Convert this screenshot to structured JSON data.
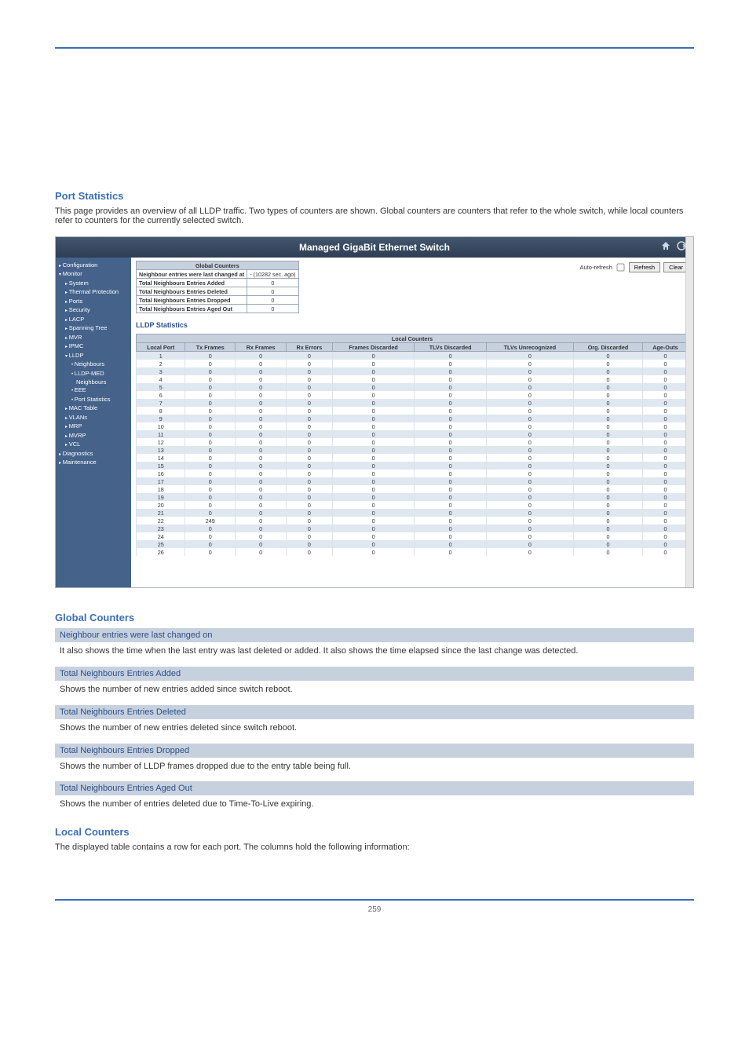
{
  "pageTitle": "Port Statistics",
  "pageDesc": "This page provides an overview of all LLDP traffic. Two types of counters are shown. Global counters are counters that refer to the whole switch, while local counters refer to counters for the currently selected switch.",
  "screenshot": {
    "title": "Managed GigaBit Ethernet Switch",
    "toolbar": {
      "autoRefresh": "Auto-refresh",
      "refresh": "Refresh",
      "clear": "Clear"
    },
    "sidebar": [
      {
        "lvl": "l1",
        "label": "Configuration"
      },
      {
        "lvl": "l1open",
        "label": "Monitor"
      },
      {
        "lvl": "l2",
        "label": "System"
      },
      {
        "lvl": "l2",
        "label": "Thermal Protection"
      },
      {
        "lvl": "l2",
        "label": "Ports"
      },
      {
        "lvl": "l2",
        "label": "Security"
      },
      {
        "lvl": "l2",
        "label": "LACP"
      },
      {
        "lvl": "l2",
        "label": "Spanning Tree"
      },
      {
        "lvl": "l2",
        "label": "MVR"
      },
      {
        "lvl": "l2",
        "label": "IPMC"
      },
      {
        "lvl": "l2open",
        "label": "LLDP"
      },
      {
        "lvl": "l3",
        "label": "Neighbours"
      },
      {
        "lvl": "l3",
        "label": "LLDP-MED"
      },
      {
        "lvl": "l3sub",
        "label": "Neighbours"
      },
      {
        "lvl": "l3",
        "label": "EEE"
      },
      {
        "lvl": "l3",
        "label": "Port Statistics"
      },
      {
        "lvl": "l2",
        "label": "MAC Table"
      },
      {
        "lvl": "l2",
        "label": "VLANs"
      },
      {
        "lvl": "l2",
        "label": "MRP"
      },
      {
        "lvl": "l2",
        "label": "MVRP"
      },
      {
        "lvl": "l2",
        "label": "VCL"
      },
      {
        "lvl": "l1",
        "label": "Diagnostics"
      },
      {
        "lvl": "l1",
        "label": "Maintenance"
      }
    ],
    "globalHeader": "Global Counters",
    "globalRows": [
      {
        "label": "Neighbour entries were last changed at",
        "value": " - (10282 sec. ago)"
      },
      {
        "label": "Total Neighbours Entries Added",
        "value": "0"
      },
      {
        "label": "Total Neighbours Entries Deleted",
        "value": "0"
      },
      {
        "label": "Total Neighbours Entries Dropped",
        "value": "0"
      },
      {
        "label": "Total Neighbours Entries Aged Out",
        "value": "0"
      }
    ],
    "lldpHeading": "LLDP Statistics",
    "localSuper": "Local Counters",
    "localCols": [
      "Local Port",
      "Tx Frames",
      "Rx Frames",
      "Rx Errors",
      "Frames Discarded",
      "TLVs Discarded",
      "TLVs Unrecognized",
      "Org. Discarded",
      "Age-Outs"
    ],
    "localRows": [
      [
        1,
        0,
        0,
        0,
        0,
        0,
        0,
        0,
        0
      ],
      [
        2,
        0,
        0,
        0,
        0,
        0,
        0,
        0,
        0
      ],
      [
        3,
        0,
        0,
        0,
        0,
        0,
        0,
        0,
        0
      ],
      [
        4,
        0,
        0,
        0,
        0,
        0,
        0,
        0,
        0
      ],
      [
        5,
        0,
        0,
        0,
        0,
        0,
        0,
        0,
        0
      ],
      [
        6,
        0,
        0,
        0,
        0,
        0,
        0,
        0,
        0
      ],
      [
        7,
        0,
        0,
        0,
        0,
        0,
        0,
        0,
        0
      ],
      [
        8,
        0,
        0,
        0,
        0,
        0,
        0,
        0,
        0
      ],
      [
        9,
        0,
        0,
        0,
        0,
        0,
        0,
        0,
        0
      ],
      [
        10,
        0,
        0,
        0,
        0,
        0,
        0,
        0,
        0
      ],
      [
        11,
        0,
        0,
        0,
        0,
        0,
        0,
        0,
        0
      ],
      [
        12,
        0,
        0,
        0,
        0,
        0,
        0,
        0,
        0
      ],
      [
        13,
        0,
        0,
        0,
        0,
        0,
        0,
        0,
        0
      ],
      [
        14,
        0,
        0,
        0,
        0,
        0,
        0,
        0,
        0
      ],
      [
        15,
        0,
        0,
        0,
        0,
        0,
        0,
        0,
        0
      ],
      [
        16,
        0,
        0,
        0,
        0,
        0,
        0,
        0,
        0
      ],
      [
        17,
        0,
        0,
        0,
        0,
        0,
        0,
        0,
        0
      ],
      [
        18,
        0,
        0,
        0,
        0,
        0,
        0,
        0,
        0
      ],
      [
        19,
        0,
        0,
        0,
        0,
        0,
        0,
        0,
        0
      ],
      [
        20,
        0,
        0,
        0,
        0,
        0,
        0,
        0,
        0
      ],
      [
        21,
        0,
        0,
        0,
        0,
        0,
        0,
        0,
        0
      ],
      [
        22,
        249,
        0,
        0,
        0,
        0,
        0,
        0,
        0
      ],
      [
        23,
        0,
        0,
        0,
        0,
        0,
        0,
        0,
        0
      ],
      [
        24,
        0,
        0,
        0,
        0,
        0,
        0,
        0,
        0
      ],
      [
        25,
        0,
        0,
        0,
        0,
        0,
        0,
        0,
        0
      ],
      [
        26,
        0,
        0,
        0,
        0,
        0,
        0,
        0,
        0
      ]
    ]
  },
  "globalLabel": "Global Counters",
  "defs": [
    {
      "label": "Neighbour entries were last changed on",
      "body": "It also shows the time when the last entry was last deleted or added. It also shows the time elapsed since the last change was detected."
    },
    {
      "label": "Total Neighbours Entries Added",
      "body": "Shows the number of new entries added since switch reboot."
    },
    {
      "label": "Total Neighbours Entries Deleted",
      "body": "Shows the number of new entries deleted since switch reboot."
    },
    {
      "label": "Total Neighbours Entries Dropped",
      "body": "Shows the number of LLDP frames dropped due to the entry table being full."
    },
    {
      "label": "Total Neighbours Entries Aged Out",
      "body": "Shows the number of entries deleted due to Time-To-Live expiring."
    }
  ],
  "localLabel": "Local Counters",
  "localDesc": "The displayed table contains a row for each port. The columns hold the following information:",
  "footer": "259"
}
